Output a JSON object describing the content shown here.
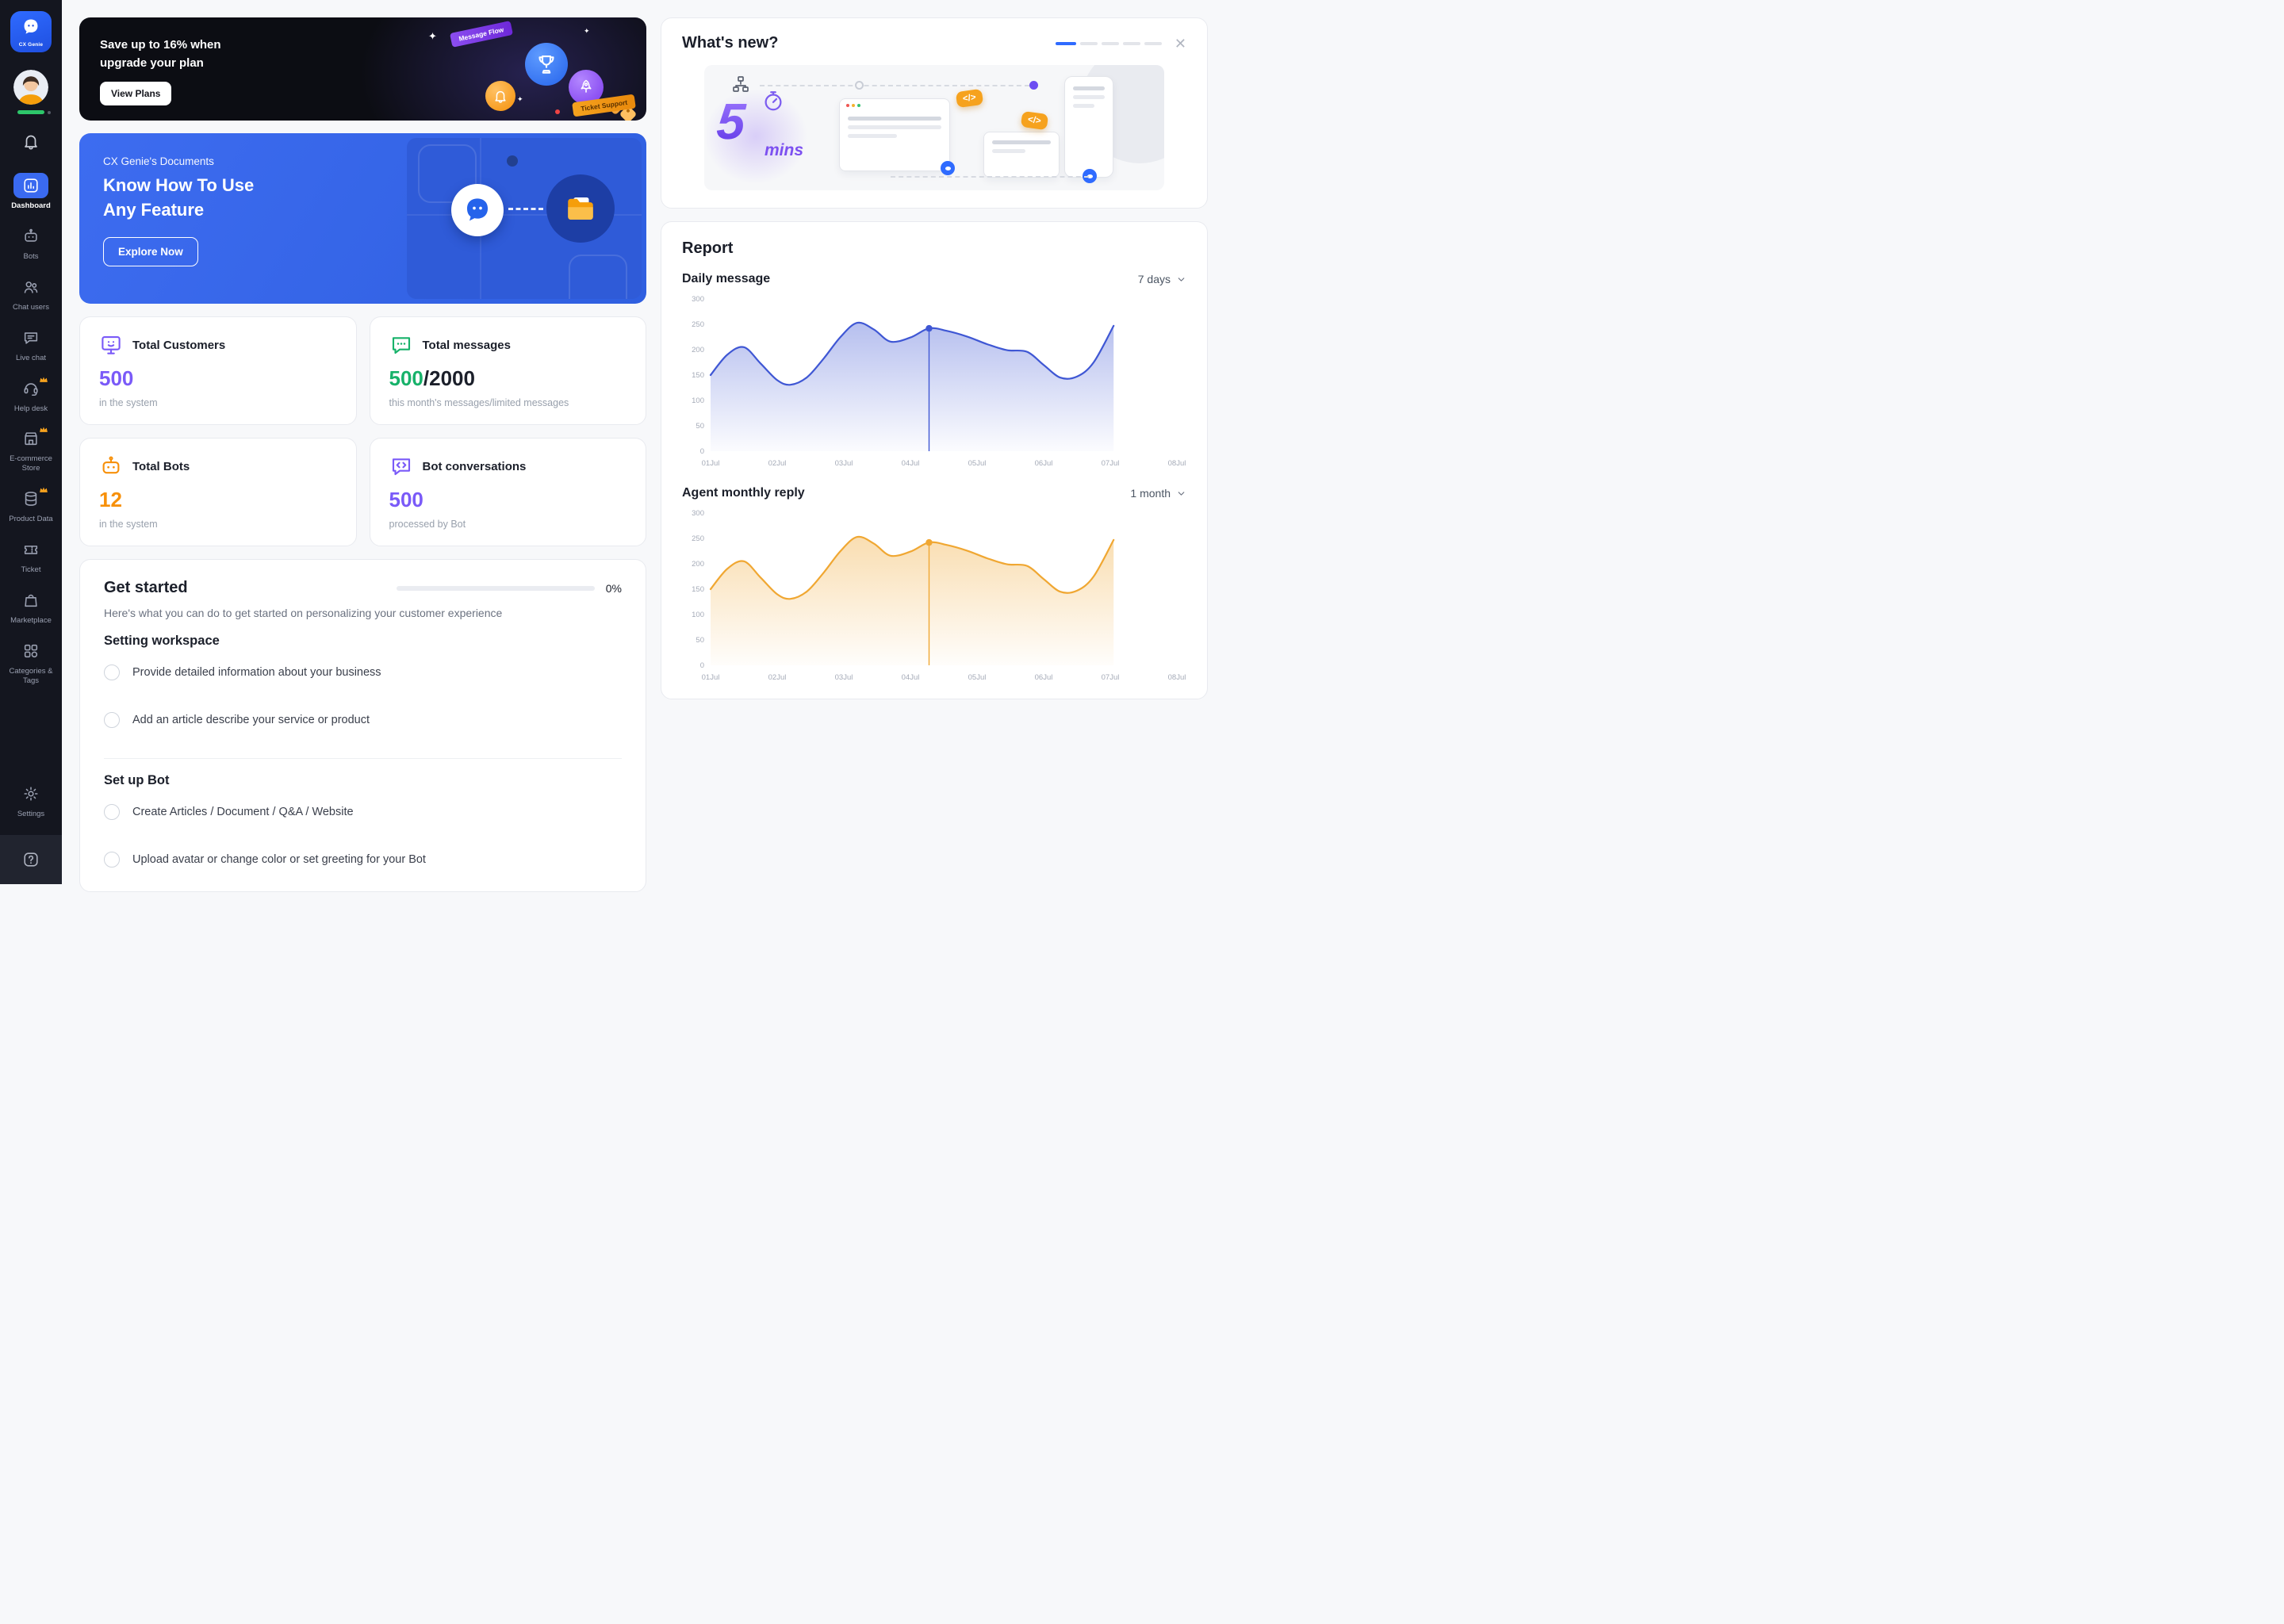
{
  "sidebar": {
    "logo_label": "CX Genie",
    "items": [
      {
        "label": "Dashboard",
        "icon": "dashboard",
        "active": true,
        "premium": false
      },
      {
        "label": "Bots",
        "icon": "bots",
        "active": false,
        "premium": false
      },
      {
        "label": "Chat users",
        "icon": "chat-users",
        "active": false,
        "premium": false
      },
      {
        "label": "Live chat",
        "icon": "live-chat",
        "active": false,
        "premium": false
      },
      {
        "label": "Help desk",
        "icon": "help-desk",
        "active": false,
        "premium": true
      },
      {
        "label": "E-commerce Store",
        "icon": "ecommerce",
        "active": false,
        "premium": true
      },
      {
        "label": "Product Data",
        "icon": "product-data",
        "active": false,
        "premium": true
      },
      {
        "label": "Ticket",
        "icon": "ticket",
        "active": false,
        "premium": false
      },
      {
        "label": "Marketplace",
        "icon": "marketplace",
        "active": false,
        "premium": false
      },
      {
        "label": "Categories & Tags",
        "icon": "categories",
        "active": false,
        "premium": false
      }
    ],
    "bottom_items": [
      {
        "label": "Settings",
        "icon": "settings",
        "active": false,
        "premium": false
      }
    ]
  },
  "promo": {
    "title_line1": "Save up to 16% when",
    "title_line2": "upgrade your plan",
    "button": "View Plans",
    "ribbon_left": "Message Flow",
    "ribbon_right": "Ticket Support",
    "sparkle": "✦"
  },
  "docs": {
    "eyebrow": "CX Genie's Documents",
    "title_line1": "Know How To Use",
    "title_line2": "Any Feature",
    "button": "Explore Now"
  },
  "stats": [
    {
      "title": "Total Customers",
      "icon": "customers",
      "value": "500",
      "suffix": "",
      "caption": "in the system",
      "color": "#7a5af8"
    },
    {
      "title": "Total messages",
      "icon": "messages",
      "value": "500",
      "suffix": "/2000",
      "caption": "this month's messages/limited messages",
      "color": "#17b26a"
    },
    {
      "title": "Total Bots",
      "icon": "bots",
      "value": "12",
      "suffix": "",
      "caption": "in the system",
      "color": "#f79009"
    },
    {
      "title": "Bot conversations",
      "icon": "conversations",
      "value": "500",
      "suffix": "",
      "caption": "processed by Bot",
      "color": "#7a5af8"
    }
  ],
  "get_started": {
    "title": "Get started",
    "progress_percent": 0,
    "progress_label": "0%",
    "subtitle": "Here's what you can do to get started on personalizing your customer experience",
    "sections": [
      {
        "title": "Setting workspace",
        "tasks": [
          "Provide detailed information about your business",
          "Add an article describe your service or product"
        ]
      },
      {
        "title": "Set up Bot",
        "tasks": [
          "Create Articles / Document / Q&A / Website",
          "Upload avatar or change color or set greeting for your Bot"
        ]
      }
    ]
  },
  "whats_new": {
    "title": "What's new?",
    "carousel_segments": 5,
    "active_segment": 0,
    "badge_number": "5",
    "badge_unit": "mins",
    "code_badge": "</>"
  },
  "report": {
    "title": "Report"
  },
  "chart_data": [
    {
      "type": "area",
      "title": "Daily message",
      "range_label": "7 days",
      "color": "#3f57d4",
      "ylim": [
        0,
        300
      ],
      "y_ticks": [
        0,
        50,
        100,
        150,
        200,
        250,
        300
      ],
      "x_labels": [
        "01Jul",
        "02Jul",
        "03Jul",
        "04Jul",
        "05Jul",
        "06Jul",
        "07Jul",
        "08Jul"
      ],
      "points": [
        [
          0,
          150
        ],
        [
          0.25,
          190
        ],
        [
          0.5,
          205
        ],
        [
          0.75,
          173
        ],
        [
          1,
          140
        ],
        [
          1.2,
          131
        ],
        [
          1.45,
          146
        ],
        [
          1.7,
          183
        ],
        [
          1.95,
          225
        ],
        [
          2.2,
          253
        ],
        [
          2.45,
          240
        ],
        [
          2.7,
          216
        ],
        [
          3,
          224
        ],
        [
          3.28,
          242
        ],
        [
          3.55,
          237
        ],
        [
          3.85,
          226
        ],
        [
          4.15,
          211
        ],
        [
          4.45,
          199
        ],
        [
          4.75,
          196
        ],
        [
          5,
          170
        ],
        [
          5.25,
          145
        ],
        [
          5.5,
          147
        ],
        [
          5.75,
          175
        ],
        [
          6.05,
          247
        ]
      ],
      "marker": [
        3.28,
        242
      ],
      "legend": "none",
      "grid": false
    },
    {
      "type": "area",
      "title": "Agent monthly reply",
      "range_label": "1 month",
      "color": "#f0a732",
      "ylim": [
        0,
        300
      ],
      "y_ticks": [
        0,
        50,
        100,
        150,
        200,
        250,
        300
      ],
      "x_labels": [
        "01Jul",
        "02Jul",
        "03Jul",
        "04Jul",
        "05Jul",
        "06Jul",
        "07Jul",
        "08Jul"
      ],
      "points": [
        [
          0,
          150
        ],
        [
          0.25,
          190
        ],
        [
          0.5,
          205
        ],
        [
          0.75,
          173
        ],
        [
          1,
          140
        ],
        [
          1.2,
          131
        ],
        [
          1.45,
          146
        ],
        [
          1.7,
          183
        ],
        [
          1.95,
          225
        ],
        [
          2.2,
          253
        ],
        [
          2.45,
          240
        ],
        [
          2.7,
          216
        ],
        [
          3,
          224
        ],
        [
          3.28,
          242
        ],
        [
          3.55,
          237
        ],
        [
          3.85,
          226
        ],
        [
          4.15,
          211
        ],
        [
          4.45,
          199
        ],
        [
          4.75,
          196
        ],
        [
          5,
          170
        ],
        [
          5.25,
          145
        ],
        [
          5.5,
          147
        ],
        [
          5.75,
          175
        ],
        [
          6.05,
          247
        ]
      ],
      "marker": [
        3.28,
        242
      ],
      "legend": "none",
      "grid": false
    }
  ]
}
